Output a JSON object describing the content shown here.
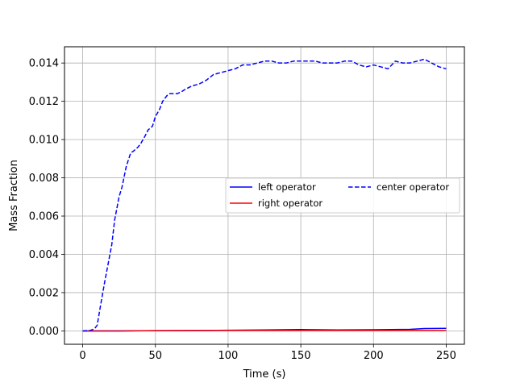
{
  "chart_data": {
    "type": "line",
    "title": "",
    "xlabel": "Time (s)",
    "ylabel": "Mass Fraction",
    "xlim": [
      -12.5,
      262.5
    ],
    "ylim": [
      -0.0007,
      0.01485
    ],
    "xticks": [
      0,
      50,
      100,
      150,
      200,
      250
    ],
    "xtick_labels": [
      "0",
      "50",
      "100",
      "150",
      "200",
      "250"
    ],
    "yticks": [
      0.0,
      0.002,
      0.004,
      0.006,
      0.008,
      0.01,
      0.012,
      0.014
    ],
    "ytick_labels": [
      "0.000",
      "0.002",
      "0.004",
      "0.006",
      "0.008",
      "0.010",
      "0.012",
      "0.014"
    ],
    "grid": true,
    "legend_position": "center-right",
    "legend_columns": 2,
    "series": [
      {
        "name": "left operator",
        "color": "#0000ff",
        "linestyle": "solid",
        "x": [
          0,
          25,
          50,
          75,
          100,
          125,
          150,
          175,
          200,
          225,
          235,
          250
        ],
        "y": [
          0.0,
          0.0,
          1e-05,
          2e-05,
          3e-05,
          5e-05,
          7e-05,
          5e-05,
          6e-05,
          8e-05,
          0.00012,
          0.00013
        ]
      },
      {
        "name": "right operator",
        "color": "#ff0000",
        "linestyle": "solid",
        "x": [
          0,
          25,
          50,
          100,
          150,
          200,
          250
        ],
        "y": [
          -1e-05,
          -1e-05,
          1e-05,
          2e-05,
          2e-05,
          2e-05,
          2e-05
        ]
      },
      {
        "name": "center operator",
        "color": "#0000ff",
        "linestyle": "dashed",
        "x": [
          0,
          5,
          8,
          10,
          12,
          15,
          18,
          20,
          22,
          25,
          27,
          30,
          33,
          35,
          38,
          40,
          43,
          45,
          48,
          50,
          53,
          55,
          58,
          60,
          65,
          68,
          70,
          75,
          80,
          85,
          90,
          95,
          100,
          105,
          110,
          115,
          120,
          125,
          130,
          135,
          140,
          145,
          150,
          155,
          160,
          165,
          170,
          175,
          180,
          185,
          190,
          195,
          200,
          205,
          210,
          215,
          220,
          225,
          230,
          235,
          240,
          245,
          250
        ],
        "y": [
          0.0,
          2e-05,
          0.0001,
          0.0003,
          0.0012,
          0.0025,
          0.0037,
          0.0045,
          0.0058,
          0.007,
          0.0075,
          0.0086,
          0.0093,
          0.0094,
          0.0096,
          0.0098,
          0.0102,
          0.0105,
          0.0107,
          0.0112,
          0.0116,
          0.012,
          0.0123,
          0.0124,
          0.0124,
          0.0125,
          0.0126,
          0.0128,
          0.0129,
          0.0131,
          0.0134,
          0.0135,
          0.0136,
          0.0137,
          0.0139,
          0.0139,
          0.014,
          0.0141,
          0.0141,
          0.014,
          0.014,
          0.0141,
          0.0141,
          0.0141,
          0.0141,
          0.014,
          0.014,
          0.014,
          0.0141,
          0.0141,
          0.0139,
          0.0138,
          0.0139,
          0.0138,
          0.0137,
          0.0141,
          0.014,
          0.014,
          0.0141,
          0.0142,
          0.014,
          0.0138,
          0.0137
        ]
      }
    ]
  }
}
